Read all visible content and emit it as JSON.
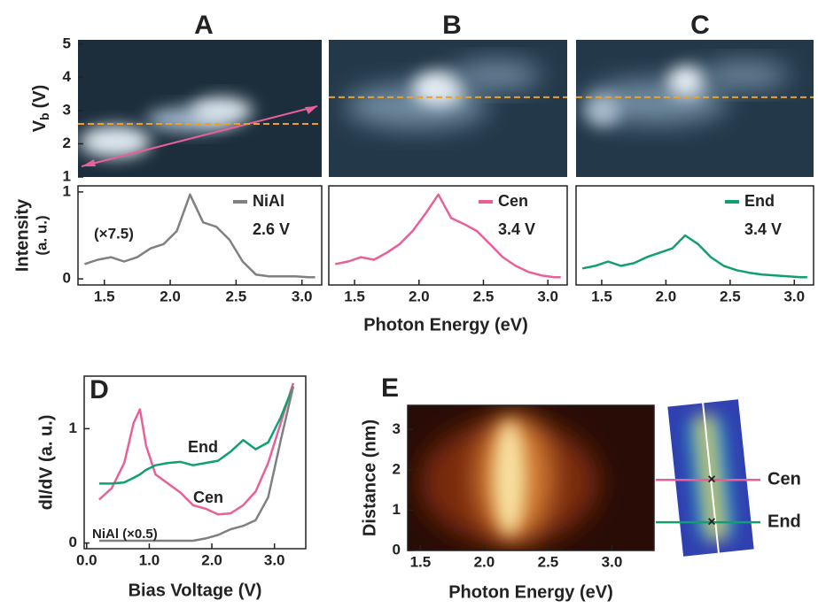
{
  "chart_data": [
    {
      "type": "image",
      "title": "A",
      "ylabel": {
        "main": "V",
        "sub": "b",
        "unit": "(V)"
      },
      "ylim": [
        1,
        5.13
      ],
      "yticks": [
        1,
        2,
        3,
        4,
        5
      ],
      "hline": 2.6
    },
    {
      "type": "image",
      "title": "B",
      "ylim": [
        1,
        5.13
      ],
      "hline": 3.4
    },
    {
      "type": "image",
      "title": "C",
      "ylim": [
        1,
        5.13
      ],
      "hline": 3.4
    },
    {
      "type": "line",
      "ylabel": "Intensity",
      "ylabel2": "(a. u.)",
      "annotation": "(×7.5)",
      "x": [
        1.35,
        1.45,
        1.55,
        1.65,
        1.75,
        1.85,
        1.95,
        2.05,
        2.15,
        2.25,
        2.35,
        2.45,
        2.55,
        2.65,
        2.75,
        2.85,
        2.95,
        3.05,
        3.1
      ],
      "series": [
        {
          "name": "NiAl",
          "note": "2.6 V",
          "color": "#808080",
          "values": [
            0.17,
            0.22,
            0.25,
            0.2,
            0.25,
            0.35,
            0.4,
            0.55,
            0.97,
            0.65,
            0.6,
            0.45,
            0.2,
            0.05,
            0.03,
            0.03,
            0.03,
            0.02,
            0.02
          ]
        }
      ],
      "xlim": [
        1.3,
        3.15
      ],
      "xticks": [
        1.5,
        {
          "value": 2,
          "label": "2.0"
        },
        2.5,
        {
          "value": 3,
          "label": "3.0"
        }
      ],
      "ylim": [
        -0.07,
        1.07
      ],
      "yticks": [
        0,
        1
      ]
    },
    {
      "type": "line",
      "xlabel": "Photon Energy (eV)",
      "x": [
        1.35,
        1.45,
        1.55,
        1.65,
        1.75,
        1.85,
        1.95,
        2.05,
        2.15,
        2.25,
        2.35,
        2.45,
        2.55,
        2.65,
        2.75,
        2.85,
        2.95,
        3.05,
        3.1
      ],
      "series": [
        {
          "name": "Cen",
          "note": "3.4 V",
          "color": "#e8609a",
          "values": [
            0.17,
            0.2,
            0.25,
            0.22,
            0.3,
            0.4,
            0.55,
            0.75,
            0.97,
            0.7,
            0.63,
            0.55,
            0.4,
            0.25,
            0.15,
            0.08,
            0.04,
            0.02,
            0.02
          ]
        }
      ],
      "xlim": [
        1.3,
        3.15
      ],
      "xticks": [
        1.5,
        {
          "value": 2,
          "label": "2.0"
        },
        2.5,
        {
          "value": 3,
          "label": "3.0"
        }
      ],
      "ylim": [
        -0.07,
        1.07
      ]
    },
    {
      "type": "line",
      "x": [
        1.35,
        1.45,
        1.55,
        1.65,
        1.75,
        1.85,
        1.95,
        2.05,
        2.15,
        2.25,
        2.35,
        2.45,
        2.55,
        2.65,
        2.75,
        2.85,
        2.95,
        3.05,
        3.1
      ],
      "series": [
        {
          "name": "End",
          "note": "3.4 V",
          "color": "#10a070",
          "values": [
            0.12,
            0.15,
            0.2,
            0.15,
            0.18,
            0.25,
            0.3,
            0.35,
            0.5,
            0.4,
            0.25,
            0.15,
            0.1,
            0.07,
            0.05,
            0.04,
            0.03,
            0.02,
            0.02
          ]
        }
      ],
      "xlim": [
        1.3,
        3.15
      ],
      "xticks": [
        1.5,
        {
          "value": 2,
          "label": "2.0"
        },
        2.5,
        {
          "value": 3,
          "label": "3.0"
        }
      ],
      "ylim": [
        -0.07,
        1.07
      ]
    },
    {
      "type": "line",
      "title": "D",
      "xlabel": "Bias Voltage (V)",
      "ylabel": "dI/dV (a. u.)",
      "x": [
        0.2,
        0.4,
        0.6,
        0.75,
        0.85,
        0.95,
        1.1,
        1.3,
        1.5,
        1.7,
        1.9,
        2.1,
        2.3,
        2.5,
        2.7,
        2.9,
        3.1,
        3.3
      ],
      "series": [
        {
          "name": "Cen",
          "color": "#e8609a",
          "values": [
            0.38,
            0.48,
            0.7,
            1.05,
            1.17,
            0.85,
            0.6,
            0.52,
            0.44,
            0.33,
            0.3,
            0.25,
            0.26,
            0.33,
            0.45,
            0.7,
            1.05,
            1.4
          ]
        },
        {
          "name": "End",
          "color": "#10a070",
          "values": [
            0.52,
            0.52,
            0.53,
            0.57,
            0.6,
            0.64,
            0.68,
            0.7,
            0.71,
            0.68,
            0.7,
            0.72,
            0.8,
            0.9,
            0.82,
            0.88,
            1.1,
            1.37
          ]
        },
        {
          "name": "NiAl (×0.5)",
          "color": "#808080",
          "values": [
            0.02,
            0.02,
            0.02,
            0.02,
            0.02,
            0.02,
            0.02,
            0.02,
            0.02,
            0.02,
            0.04,
            0.07,
            0.12,
            0.15,
            0.2,
            0.4,
            0.9,
            1.37
          ]
        }
      ],
      "xlim": [
        -0.04,
        3.5
      ],
      "xticks": [
        {
          "value": 0,
          "label": "0.0"
        },
        {
          "value": 1,
          "label": "1.0"
        },
        {
          "value": 2,
          "label": "2.0"
        },
        {
          "value": 3,
          "label": "3.0"
        }
      ],
      "ylim": [
        -0.05,
        1.46
      ],
      "yticks": [
        0,
        1
      ]
    },
    {
      "type": "heatmap",
      "title": "E",
      "xlabel": "Photon Energy (eV)",
      "ylabel": "Distance (nm)",
      "xlim": [
        1.4,
        3.33
      ],
      "xticks": [
        1.5,
        {
          "value": 2,
          "label": "2.0"
        },
        2.5,
        {
          "value": 3,
          "label": "3.0"
        }
      ],
      "ylim": [
        0,
        3.6
      ],
      "yticks": [
        0,
        1,
        2,
        3
      ],
      "markers": [
        {
          "name": "Cen",
          "value": 1.75,
          "color": "#e8609a"
        },
        {
          "name": "End",
          "value": 0.7,
          "color": "#10a070"
        }
      ]
    }
  ]
}
